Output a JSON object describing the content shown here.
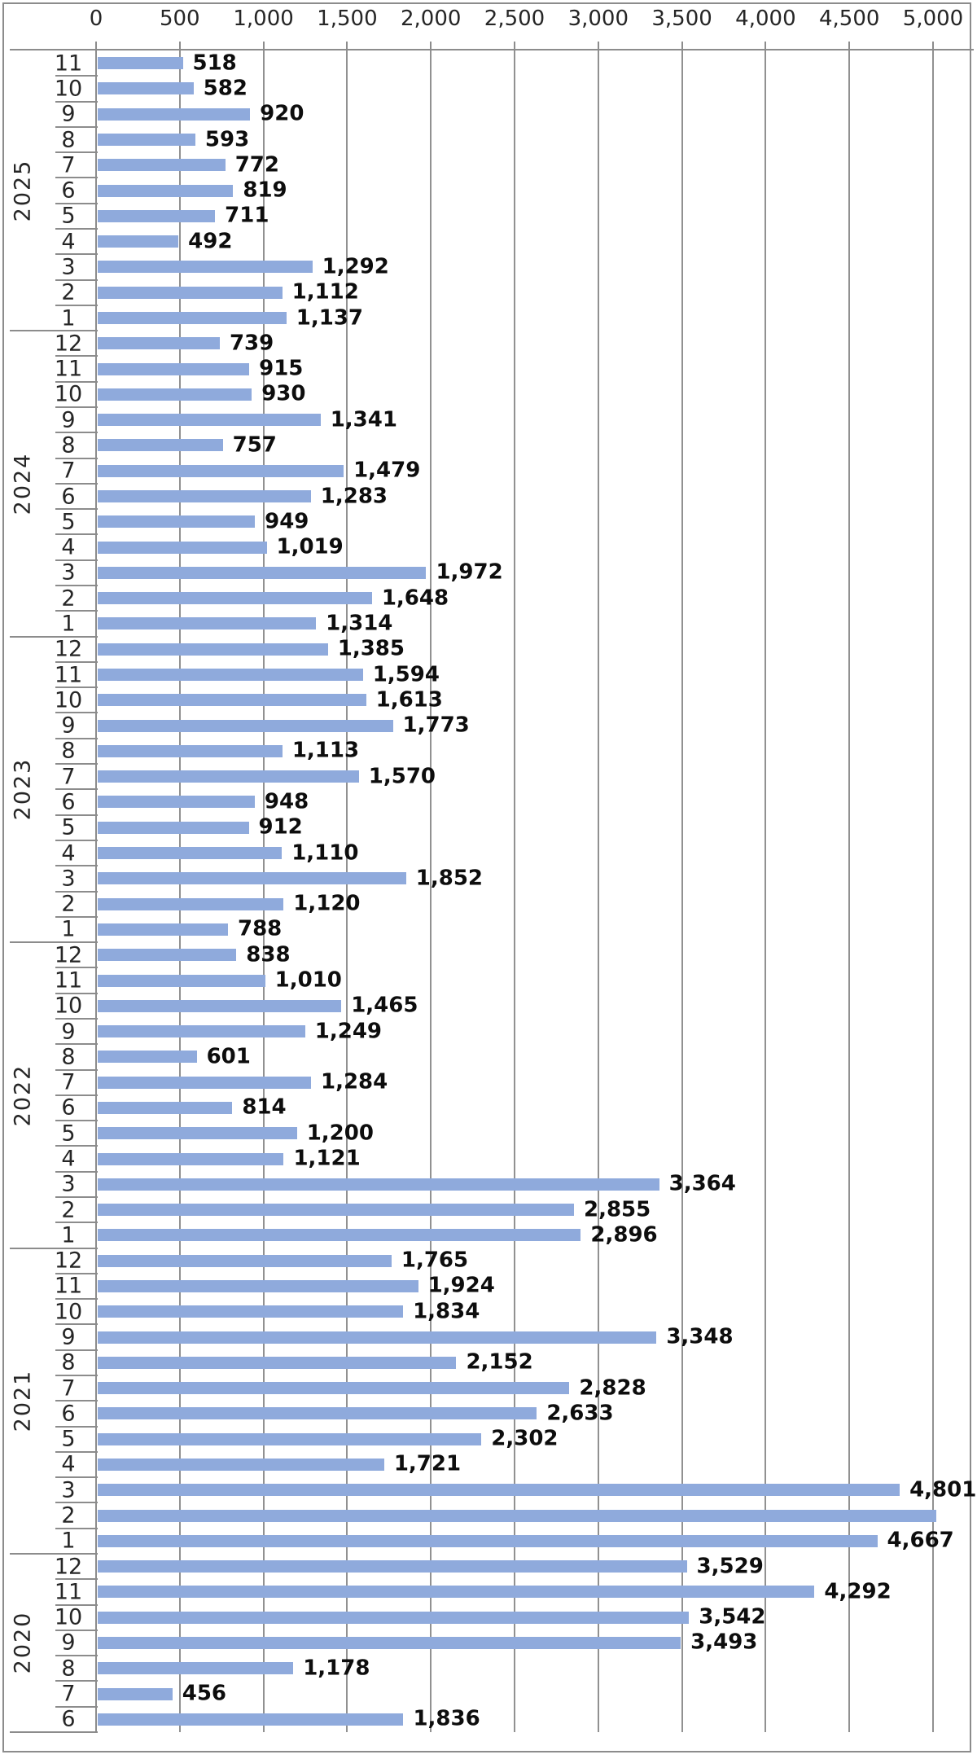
{
  "chart_data": {
    "type": "bar",
    "orientation": "horizontal",
    "title": "",
    "xlabel": "",
    "ylabel": "",
    "grid": true,
    "value_axis": {
      "position": "top",
      "min": 0,
      "max": 5000,
      "tick_step": 500,
      "tick_values": [
        0,
        500,
        1000,
        1500,
        2000,
        2500,
        3000,
        3500,
        4000,
        4500,
        5000
      ],
      "tick_labels": [
        "0",
        "500",
        "1,000",
        "1,500",
        "2,000",
        "2,500",
        "3,000",
        "3,500",
        "4,000",
        "4,500",
        "5,000"
      ]
    },
    "category_axis": {
      "outer_level": "year",
      "inner_level": "month"
    },
    "groups": [
      {
        "year": "2025",
        "months": [
          {
            "month": "11",
            "value": 518,
            "label": "518"
          },
          {
            "month": "10",
            "value": 582,
            "label": "582"
          },
          {
            "month": "9",
            "value": 920,
            "label": "920"
          },
          {
            "month": "8",
            "value": 593,
            "label": "593"
          },
          {
            "month": "7",
            "value": 772,
            "label": "772"
          },
          {
            "month": "6",
            "value": 819,
            "label": "819"
          },
          {
            "month": "5",
            "value": 711,
            "label": "711"
          },
          {
            "month": "4",
            "value": 492,
            "label": "492"
          },
          {
            "month": "3",
            "value": 1292,
            "label": "1,292"
          },
          {
            "month": "2",
            "value": 1112,
            "label": "1,112"
          },
          {
            "month": "1",
            "value": 1137,
            "label": "1,137"
          }
        ]
      },
      {
        "year": "2024",
        "months": [
          {
            "month": "12",
            "value": 739,
            "label": "739"
          },
          {
            "month": "11",
            "value": 915,
            "label": "915"
          },
          {
            "month": "10",
            "value": 930,
            "label": "930"
          },
          {
            "month": "9",
            "value": 1341,
            "label": "1,341"
          },
          {
            "month": "8",
            "value": 757,
            "label": "757"
          },
          {
            "month": "7",
            "value": 1479,
            "label": "1,479"
          },
          {
            "month": "6",
            "value": 1283,
            "label": "1,283"
          },
          {
            "month": "5",
            "value": 949,
            "label": "949"
          },
          {
            "month": "4",
            "value": 1019,
            "label": "1,019"
          },
          {
            "month": "3",
            "value": 1972,
            "label": "1,972"
          },
          {
            "month": "2",
            "value": 1648,
            "label": "1,648"
          },
          {
            "month": "1",
            "value": 1314,
            "label": "1,314"
          }
        ]
      },
      {
        "year": "2023",
        "months": [
          {
            "month": "12",
            "value": 1385,
            "label": "1,385"
          },
          {
            "month": "11",
            "value": 1594,
            "label": "1,594"
          },
          {
            "month": "10",
            "value": 1613,
            "label": "1,613"
          },
          {
            "month": "9",
            "value": 1773,
            "label": "1,773"
          },
          {
            "month": "8",
            "value": 1113,
            "label": "1,113"
          },
          {
            "month": "7",
            "value": 1570,
            "label": "1,570"
          },
          {
            "month": "6",
            "value": 948,
            "label": "948"
          },
          {
            "month": "5",
            "value": 912,
            "label": "912"
          },
          {
            "month": "4",
            "value": 1110,
            "label": "1,110"
          },
          {
            "month": "3",
            "value": 1852,
            "label": "1,852"
          },
          {
            "month": "2",
            "value": 1120,
            "label": "1,120"
          },
          {
            "month": "1",
            "value": 788,
            "label": "788"
          }
        ]
      },
      {
        "year": "2022",
        "months": [
          {
            "month": "12",
            "value": 838,
            "label": "838"
          },
          {
            "month": "11",
            "value": 1010,
            "label": "1,010"
          },
          {
            "month": "10",
            "value": 1465,
            "label": "1,465"
          },
          {
            "month": "9",
            "value": 1249,
            "label": "1,249"
          },
          {
            "month": "8",
            "value": 601,
            "label": "601"
          },
          {
            "month": "7",
            "value": 1284,
            "label": "1,284"
          },
          {
            "month": "6",
            "value": 814,
            "label": "814"
          },
          {
            "month": "5",
            "value": 1200,
            "label": "1,200"
          },
          {
            "month": "4",
            "value": 1121,
            "label": "1,121"
          },
          {
            "month": "3",
            "value": 3364,
            "label": "3,364"
          },
          {
            "month": "2",
            "value": 2855,
            "label": "2,855"
          },
          {
            "month": "1",
            "value": 2896,
            "label": "2,896"
          }
        ]
      },
      {
        "year": "2021",
        "months": [
          {
            "month": "12",
            "value": 1765,
            "label": "1,765"
          },
          {
            "month": "11",
            "value": 1924,
            "label": "1,924"
          },
          {
            "month": "10",
            "value": 1834,
            "label": "1,834"
          },
          {
            "month": "9",
            "value": 3348,
            "label": "3,348"
          },
          {
            "month": "8",
            "value": 2152,
            "label": "2,152"
          },
          {
            "month": "7",
            "value": 2828,
            "label": "2,828"
          },
          {
            "month": "6",
            "value": 2633,
            "label": "2,633"
          },
          {
            "month": "5",
            "value": 2302,
            "label": "2,302"
          },
          {
            "month": "4",
            "value": 1721,
            "label": "1,721"
          },
          {
            "month": "3",
            "value": 4801,
            "label": "4,801"
          },
          {
            "month": "2",
            "value": 5020,
            "label": ""
          },
          {
            "month": "1",
            "value": 4667,
            "label": "4,667"
          }
        ]
      },
      {
        "year": "2020",
        "months": [
          {
            "month": "12",
            "value": 3529,
            "label": "3,529"
          },
          {
            "month": "11",
            "value": 4292,
            "label": "4,292"
          },
          {
            "month": "10",
            "value": 3542,
            "label": "3,542"
          },
          {
            "month": "9",
            "value": 3493,
            "label": "3,493"
          },
          {
            "month": "8",
            "value": 1178,
            "label": "1,178"
          },
          {
            "month": "7",
            "value": 456,
            "label": "456"
          },
          {
            "month": "6",
            "value": 1836,
            "label": "1,836"
          }
        ]
      }
    ]
  },
  "colors": {
    "bar_fill": "#8FAADC",
    "gridline": "#919191",
    "axis_line": "#8c8c8c",
    "separator": "#8c8c8c",
    "tick_text": "#262626",
    "value_text": "#0d0d0d",
    "border": "#8c8c8c",
    "background": "#ffffff"
  }
}
